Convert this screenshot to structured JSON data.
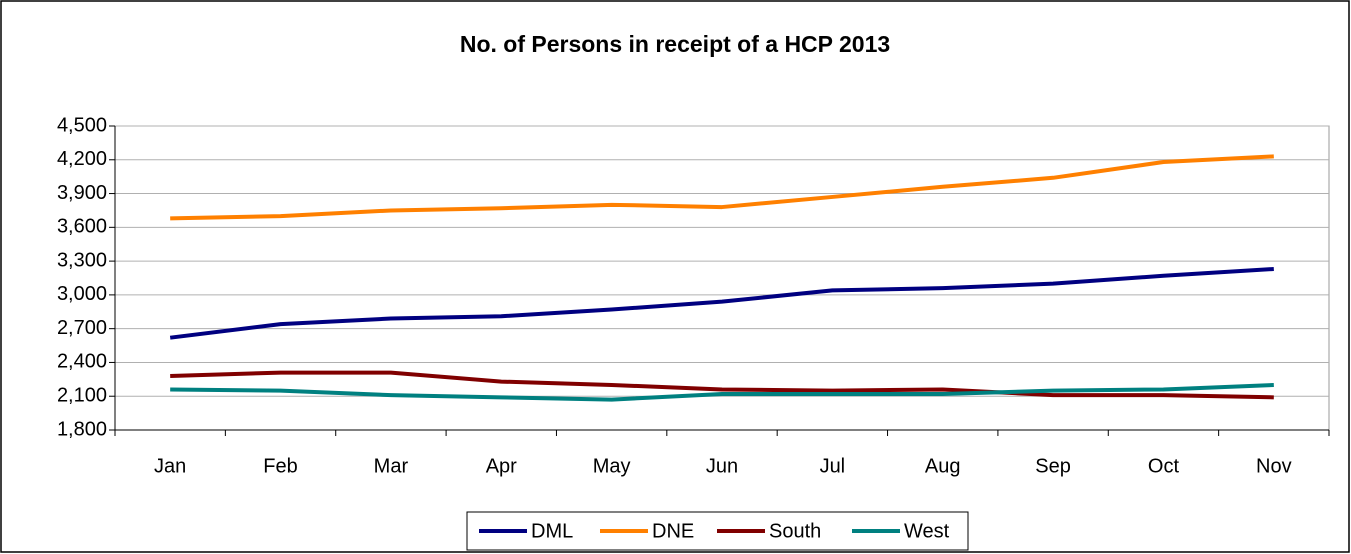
{
  "chart_data": {
    "type": "line",
    "title": "No. of Persons in receipt of a HCP 2013",
    "categories": [
      "Jan",
      "Feb",
      "Mar",
      "Apr",
      "May",
      "Jun",
      "Jul",
      "Aug",
      "Sep",
      "Oct",
      "Nov"
    ],
    "series": [
      {
        "name": "DML",
        "color": "#000080",
        "values": [
          2620,
          2740,
          2790,
          2810,
          2870,
          2940,
          3040,
          3060,
          3100,
          3170,
          3230
        ]
      },
      {
        "name": "DNE",
        "color": "#ff8000",
        "values": [
          3680,
          3700,
          3750,
          3770,
          3800,
          3780,
          3870,
          3960,
          4040,
          4180,
          4230
        ]
      },
      {
        "name": "South",
        "color": "#800000",
        "values": [
          2280,
          2310,
          2310,
          2230,
          2200,
          2160,
          2150,
          2160,
          2110,
          2110,
          2090
        ]
      },
      {
        "name": "West",
        "color": "#008080",
        "values": [
          2160,
          2150,
          2110,
          2090,
          2070,
          2120,
          2120,
          2120,
          2150,
          2160,
          2200
        ]
      }
    ],
    "ylim": [
      1800,
      4500
    ],
    "yticks": [
      {
        "value": 1800,
        "label": "1,800"
      },
      {
        "value": 2100,
        "label": "2,100"
      },
      {
        "value": 2400,
        "label": "2,400"
      },
      {
        "value": 2700,
        "label": "2,700"
      },
      {
        "value": 3000,
        "label": "3,000"
      },
      {
        "value": 3300,
        "label": "3,300"
      },
      {
        "value": 3600,
        "label": "3,600"
      },
      {
        "value": 3900,
        "label": "3,900"
      },
      {
        "value": 4200,
        "label": "4,200"
      },
      {
        "value": 4500,
        "label": "4,500"
      }
    ],
    "grid": true,
    "legend": "bottom"
  }
}
